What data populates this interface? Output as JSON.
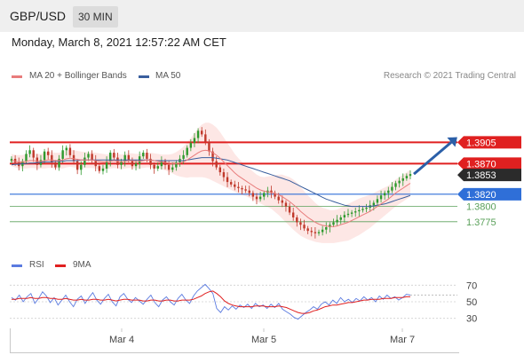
{
  "header": {
    "symbol": "GBP/USD",
    "timeframe": "30 MIN",
    "datetime": "Monday, March 8, 2021 12:57:22 AM CET",
    "credit": "Research © 2021 Trading Central"
  },
  "colors": {
    "candle_up": "#2e9a2e",
    "candle_down": "#c0392b",
    "ma20": "#e87c7c",
    "bollinger_fill": "#fde3e0",
    "ma50": "#3a5f9e",
    "resistance": "#e02020",
    "support": "#2f6fd8",
    "target": "#5aa05a",
    "rsi": "#5b7be0",
    "rsi_ma": "#e02020",
    "arrow": "#2b5fa8"
  },
  "chart_data": [
    {
      "type": "candlestick",
      "title": "",
      "legend": [
        "MA 20 + Bollinger Bands",
        "MA 50"
      ],
      "x_tick_labels": [
        "Mar 4",
        "Mar 5",
        "Mar 7"
      ],
      "ylim": [
        1.3734,
        1.4
      ],
      "current_price": "1.3853",
      "levels": [
        {
          "value": 1.3905,
          "label": "1.3905",
          "role": "resistance",
          "style": "red-box"
        },
        {
          "value": 1.387,
          "label": "1.3870",
          "role": "resistance",
          "style": "red-box"
        },
        {
          "value": 1.382,
          "label": "1.3820",
          "role": "support",
          "style": "blue-box"
        },
        {
          "value": 1.38,
          "label": "1.3800",
          "role": "target",
          "style": "green-text"
        },
        {
          "value": 1.3775,
          "label": "1.3775",
          "role": "target",
          "style": "green-text"
        }
      ],
      "close_series": [
        1.3878,
        1.3872,
        1.3866,
        1.3874,
        1.3886,
        1.3892,
        1.388,
        1.3868,
        1.3876,
        1.389,
        1.3884,
        1.3872,
        1.3864,
        1.3878,
        1.3892,
        1.3896,
        1.3884,
        1.3874,
        1.386,
        1.3868,
        1.388,
        1.3886,
        1.3876,
        1.3866,
        1.3858,
        1.3862,
        1.3874,
        1.3888,
        1.388,
        1.3868,
        1.3874,
        1.3884,
        1.3876,
        1.3866,
        1.387,
        1.3882,
        1.3888,
        1.3878,
        1.3868,
        1.3862,
        1.3866,
        1.3874,
        1.3868,
        1.386,
        1.3864,
        1.3872,
        1.3878,
        1.3884,
        1.3896,
        1.3904,
        1.3912,
        1.3924,
        1.3918,
        1.3906,
        1.389,
        1.3874,
        1.3864,
        1.3856,
        1.3848,
        1.384,
        1.3836,
        1.3832,
        1.383,
        1.3828,
        1.3826,
        1.3822,
        1.3816,
        1.3812,
        1.3816,
        1.3822,
        1.3826,
        1.3822,
        1.3816,
        1.381,
        1.3806,
        1.38,
        1.379,
        1.3782,
        1.3774,
        1.377,
        1.3764,
        1.376,
        1.3758,
        1.3756,
        1.3758,
        1.3762,
        1.3766,
        1.377,
        1.3774,
        1.3778,
        1.3782,
        1.3786,
        1.3788,
        1.379,
        1.3792,
        1.3794,
        1.3796,
        1.3798,
        1.3802,
        1.3806,
        1.3812,
        1.3818,
        1.3822,
        1.3826,
        1.3832,
        1.3838,
        1.3842,
        1.3846,
        1.385,
        1.3853
      ],
      "ma20_series": [
        1.3876,
        1.3874,
        1.3873,
        1.3873,
        1.3874,
        1.3875,
        1.3875,
        1.3874,
        1.3874,
        1.3875,
        1.3876,
        1.3876,
        1.3875,
        1.3875,
        1.3876,
        1.3878,
        1.3879,
        1.3878,
        1.3877,
        1.3876,
        1.3876,
        1.3876,
        1.3876,
        1.3875,
        1.3874,
        1.3873,
        1.3873,
        1.3874,
        1.3875,
        1.3874,
        1.3873,
        1.3874,
        1.3875,
        1.3875,
        1.3874,
        1.3874,
        1.3875,
        1.3876,
        1.3876,
        1.3875,
        1.3874,
        1.3873,
        1.3872,
        1.3871,
        1.387,
        1.387,
        1.3871,
        1.3873,
        1.3876,
        1.388,
        1.3884,
        1.3888,
        1.3891,
        1.3892,
        1.3891,
        1.3888,
        1.3884,
        1.3879,
        1.3873,
        1.3867,
        1.3861,
        1.3855,
        1.385,
        1.3846,
        1.3842,
        1.3838,
        1.3834,
        1.383,
        1.3827,
        1.3825,
        1.3824,
        1.3823,
        1.3821,
        1.3819,
        1.3816,
        1.3812,
        1.3808,
        1.3803,
        1.3798,
        1.3792,
        1.3787,
        1.3782,
        1.3778,
        1.3774,
        1.3771,
        1.3769,
        1.3768,
        1.3767,
        1.3767,
        1.3768,
        1.377,
        1.3772,
        1.3774,
        1.3777,
        1.378,
        1.3783,
        1.3786,
        1.3789,
        1.3792,
        1.3796,
        1.38,
        1.3804,
        1.3808,
        1.3812,
        1.3817,
        1.3822,
        1.3826,
        1.383,
        1.3834,
        1.3838
      ],
      "ma50_series": [
        1.3868,
        1.3869,
        1.3869,
        1.387,
        1.387,
        1.3871,
        1.3871,
        1.3872,
        1.3872,
        1.3873,
        1.3873,
        1.3873,
        1.3874,
        1.3874,
        1.3874,
        1.3875,
        1.3875,
        1.3875,
        1.3875,
        1.3876,
        1.3876,
        1.3876,
        1.3876,
        1.3876,
        1.3876,
        1.3876,
        1.3876,
        1.3876,
        1.3876,
        1.3876,
        1.3876,
        1.3876,
        1.3876,
        1.3876,
        1.3876,
        1.3876,
        1.3876,
        1.3876,
        1.3876,
        1.3875,
        1.3875,
        1.3875,
        1.3875,
        1.3875,
        1.3875,
        1.3875,
        1.3875,
        1.3875,
        1.3876,
        1.3877,
        1.3878,
        1.3879,
        1.388,
        1.388,
        1.388,
        1.388,
        1.3879,
        1.3878,
        1.3877,
        1.3876,
        1.3874,
        1.3872,
        1.387,
        1.3868,
        1.3866,
        1.3864,
        1.3862,
        1.386,
        1.3858,
        1.3856,
        1.3854,
        1.3852,
        1.385,
        1.3848,
        1.3846,
        1.3844,
        1.3842,
        1.3839,
        1.3836,
        1.3833,
        1.383,
        1.3827,
        1.3824,
        1.3821,
        1.3818,
        1.3815,
        1.3812,
        1.381,
        1.3808,
        1.3806,
        1.3804,
        1.3802,
        1.3801,
        1.38,
        1.38,
        1.38,
        1.38,
        1.38,
        1.38,
        1.3801,
        1.3802,
        1.3803,
        1.3804,
        1.3806,
        1.3808,
        1.381,
        1.3812,
        1.3814,
        1.3816,
        1.3818
      ],
      "bollinger_width": [
        0.001,
        0.001,
        0.0011,
        0.0011,
        0.0012,
        0.0012,
        0.0012,
        0.0012,
        0.0012,
        0.0013,
        0.0013,
        0.0013,
        0.0013,
        0.0013,
        0.0014,
        0.0014,
        0.0014,
        0.0014,
        0.0014,
        0.0014,
        0.0013,
        0.0013,
        0.0013,
        0.0013,
        0.0013,
        0.0013,
        0.0012,
        0.0012,
        0.0012,
        0.0012,
        0.0012,
        0.0012,
        0.0012,
        0.0012,
        0.0012,
        0.0012,
        0.0012,
        0.0012,
        0.0012,
        0.0012,
        0.0012,
        0.0012,
        0.0013,
        0.0014,
        0.0016,
        0.0019,
        0.0022,
        0.0025,
        0.0029,
        0.0032,
        0.0036,
        0.004,
        0.0043,
        0.0045,
        0.0046,
        0.0046,
        0.0045,
        0.0043,
        0.004,
        0.0037,
        0.0034,
        0.0031,
        0.0029,
        0.0027,
        0.0025,
        0.0024,
        0.0023,
        0.0022,
        0.0022,
        0.0023,
        0.0025,
        0.0027,
        0.003,
        0.0033,
        0.0036,
        0.0038,
        0.004,
        0.0041,
        0.0041,
        0.004,
        0.0038,
        0.0036,
        0.0034,
        0.0032,
        0.003,
        0.0029,
        0.0028,
        0.0027,
        0.0027,
        0.0027,
        0.0028,
        0.0029,
        0.003,
        0.003,
        0.003,
        0.003,
        0.0029,
        0.0028,
        0.0027,
        0.0026,
        0.0025,
        0.0024,
        0.0023,
        0.0022,
        0.0022,
        0.0022,
        0.0022,
        0.0022,
        0.0022,
        0.0022
      ]
    },
    {
      "type": "line",
      "title": "",
      "legend": [
        "RSI",
        "9MA"
      ],
      "ylim": [
        20,
        80
      ],
      "y_ticks": [
        70,
        50,
        30
      ],
      "current_value": 58,
      "rsi_series": [
        55,
        52,
        58,
        50,
        56,
        60,
        48,
        54,
        62,
        57,
        49,
        55,
        46,
        52,
        58,
        50,
        44,
        53,
        57,
        48,
        55,
        61,
        52,
        47,
        54,
        59,
        50,
        45,
        56,
        60,
        53,
        49,
        55,
        51,
        47,
        53,
        58,
        49,
        44,
        52,
        56,
        50,
        46,
        54,
        59,
        52,
        48,
        57,
        63,
        67,
        71,
        66,
        60,
        42,
        37,
        44,
        40,
        45,
        41,
        46,
        43,
        47,
        42,
        48,
        44,
        46,
        42,
        47,
        43,
        48,
        41,
        38,
        35,
        31,
        29,
        33,
        37,
        40,
        44,
        41,
        47,
        50,
        46,
        52,
        48,
        55,
        50,
        53,
        49,
        54,
        51,
        56,
        52,
        55,
        50,
        57,
        53,
        58,
        54,
        56,
        52,
        55,
        59,
        58
      ],
      "rsi_ma_series": [
        53,
        53,
        54,
        54,
        54,
        55,
        54,
        54,
        55,
        55,
        54,
        54,
        53,
        53,
        54,
        53,
        52,
        52,
        53,
        52,
        52,
        53,
        53,
        52,
        52,
        53,
        52,
        51,
        52,
        53,
        53,
        52,
        52,
        52,
        51,
        51,
        52,
        52,
        51,
        51,
        52,
        52,
        51,
        51,
        52,
        52,
        52,
        53,
        55,
        57,
        60,
        62,
        63,
        60,
        56,
        51,
        48,
        46,
        45,
        44,
        44,
        44,
        44,
        45,
        45,
        45,
        44,
        44,
        44,
        45,
        44,
        43,
        41,
        39,
        37,
        36,
        36,
        37,
        39,
        40,
        42,
        44,
        45,
        46,
        46,
        47,
        48,
        49,
        49,
        50,
        51,
        52,
        52,
        53,
        53,
        53,
        54,
        54,
        54,
        55,
        55,
        55,
        56,
        56
      ]
    }
  ]
}
